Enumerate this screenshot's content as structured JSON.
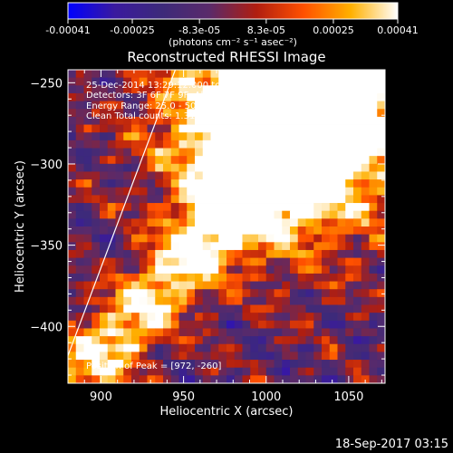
{
  "chart_data": {
    "type": "heatmap",
    "title": "Reconstructed RHESSI Image",
    "xlabel": "Heliocentric X (arcsec)",
    "ylabel": "Heliocentric Y (arcsec)",
    "xlim": [
      880,
      1072
    ],
    "ylim": [
      -435,
      -242
    ],
    "x_ticks": [
      900,
      950,
      1000,
      1050
    ],
    "y_ticks": [
      -400,
      -350,
      -300,
      -250
    ],
    "colorbar": {
      "range": [
        -0.00041,
        0.00041
      ],
      "ticks": [
        -0.00041,
        -0.00025,
        -8.3e-05,
        8.3e-05,
        0.00025,
        0.00041
      ],
      "tick_labels": [
        "-0.00041",
        "-0.00025",
        "-8.3e-05",
        "8.3e-05",
        "0.00025",
        "0.00041"
      ],
      "unit_label": "(photons cm⁻² s⁻¹ asec⁻²)",
      "colors": [
        "#0000ff",
        "#3a1a9e",
        "#3d2a7a",
        "#5a2a6a",
        "#b01e10",
        "#ff5000",
        "#ffb000",
        "#ffffff"
      ]
    },
    "annotations": [
      "25-Dec-2014 13:29:12.000 to 13:39:12.000",
      "Detectors: 3F 6F 7F 9F, All 9",
      "Energy Range: 25.0 - 50.0 keV",
      "Clean    Total counts: 1.315e+04",
      "Position of Peak = [972, -260]"
    ],
    "peak": {
      "x": 972,
      "y": -260
    },
    "limb_line": [
      [
        880,
        -418
      ],
      [
        945,
        -242
      ]
    ],
    "footer": "18-Sep-2017 03:15"
  }
}
